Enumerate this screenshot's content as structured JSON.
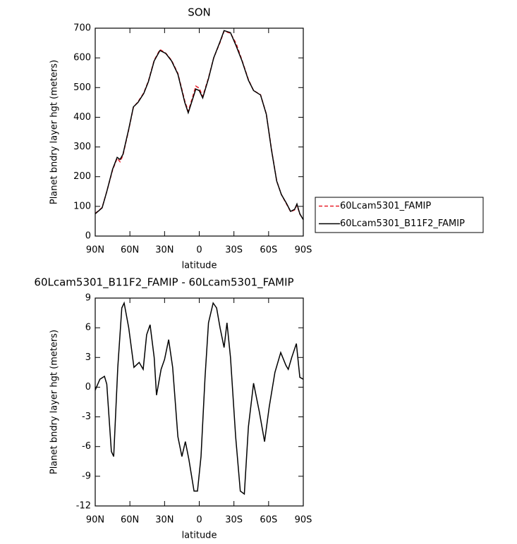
{
  "chart_data": [
    {
      "type": "line",
      "title": "SON",
      "xlabel": "latitude",
      "ylabel": "Planet bndry layer hgt (meters)",
      "xlim": [
        90,
        -90
      ],
      "xticks": [
        {
          "value": 90,
          "label": "90N"
        },
        {
          "value": 60,
          "label": "60N"
        },
        {
          "value": 30,
          "label": "30N"
        },
        0,
        {
          "value": -30,
          "label": "30S"
        },
        {
          "value": -60,
          "label": "60S"
        },
        {
          "value": -90,
          "label": "90S"
        }
      ],
      "ylim": [
        0,
        700
      ],
      "yticks": [
        0,
        100,
        200,
        300,
        400,
        500,
        600,
        700
      ],
      "legend": "outside-right",
      "x": [
        90,
        84,
        80,
        75,
        71,
        68.5,
        66,
        61,
        57,
        53,
        48,
        44,
        39,
        34,
        29,
        24,
        18.5,
        12.5,
        9.5,
        5,
        3,
        0,
        -3,
        -8,
        -12.5,
        -18,
        -21.5,
        -27,
        -32,
        -37,
        -42.5,
        -47,
        -53,
        -58,
        -62.5,
        -67,
        -71,
        -75.5,
        -79,
        -82.5,
        -84.5,
        -87,
        -90
      ],
      "series": [
        {
          "name": "60Lcam5301_FAMIP",
          "color": "#e8202a",
          "dash": true,
          "values": [
            76,
            96,
            150,
            222,
            262,
            250,
            272,
            358,
            433,
            452,
            482,
            522,
            592,
            628,
            616,
            592,
            548,
            455,
            420,
            478,
            505,
            498,
            470,
            533,
            600,
            652,
            690,
            683,
            648,
            592,
            527,
            490,
            476,
            411,
            292,
            186,
            140,
            108,
            82,
            88,
            104,
            74,
            56
          ]
        },
        {
          "name": "60Lcam5301_B11F2_FAMIP",
          "color": "#000000",
          "dash": false,
          "values": [
            75,
            95,
            150,
            225,
            265,
            258,
            275,
            360,
            435,
            450,
            480,
            520,
            590,
            625,
            615,
            590,
            545,
            450,
            415,
            470,
            495,
            490,
            465,
            530,
            600,
            655,
            692,
            685,
            640,
            590,
            525,
            490,
            475,
            410,
            290,
            185,
            140,
            110,
            83,
            90,
            108,
            75,
            55
          ]
        }
      ]
    },
    {
      "type": "line",
      "title": "60Lcam5301_B11F2_FAMIP - 60Lcam5301_FAMIP",
      "xlabel": "latitude",
      "ylabel": "Planet bndry layer hgt (meters)",
      "xlim": [
        90,
        -90
      ],
      "xticks": [
        {
          "value": 90,
          "label": "90N"
        },
        {
          "value": 60,
          "label": "60N"
        },
        {
          "value": 30,
          "label": "30N"
        },
        0,
        {
          "value": -30,
          "label": "30S"
        },
        {
          "value": -60,
          "label": "60S"
        },
        {
          "value": -90,
          "label": "90S"
        }
      ],
      "ylim": [
        -12,
        9
      ],
      "yticks": [
        -12,
        -9,
        -6,
        -3,
        0,
        3,
        6,
        9
      ],
      "x": [
        90,
        86,
        82,
        80,
        76,
        74,
        70.5,
        67,
        65,
        61,
        56.5,
        52,
        48.5,
        45.5,
        42.5,
        39,
        37,
        33,
        30,
        26.5,
        23,
        18.5,
        15,
        12,
        9,
        4.5,
        1.5,
        -1.5,
        -5,
        -8,
        -12,
        -15,
        -18,
        -21.5,
        -24,
        -27,
        -31.5,
        -35.5,
        -39,
        -42.5,
        -47,
        -52,
        -56.5,
        -60.5,
        -65.5,
        -70.5,
        -75,
        -77,
        -80,
        -84,
        -87,
        -90
      ],
      "series": [
        {
          "color": "#000000",
          "dash": false,
          "values": [
            -0.3,
            0.8,
            1.1,
            0.3,
            -6.5,
            -7,
            2,
            8,
            8.5,
            6,
            2,
            2.5,
            1.8,
            5.3,
            6.3,
            3,
            -0.8,
            1.8,
            2.8,
            4.8,
            2,
            -5,
            -7,
            -5.5,
            -7.3,
            -10.5,
            -10.5,
            -7,
            1,
            6.5,
            8.5,
            8,
            6,
            4,
            6.5,
            3,
            -5,
            -10.5,
            -10.8,
            -4,
            0.4,
            -2.5,
            -5.5,
            -2,
            1.5,
            3.5,
            2.2,
            1.8,
            3,
            4.4,
            1,
            0.8
          ]
        }
      ]
    }
  ]
}
